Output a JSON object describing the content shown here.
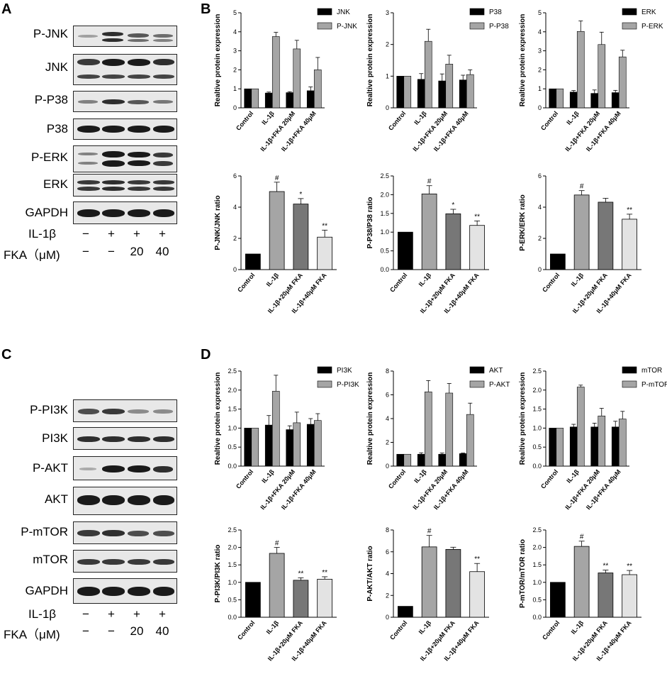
{
  "panels": [
    "A",
    "B",
    "C",
    "D"
  ],
  "blotA": {
    "labels": [
      "P-JNK",
      "JNK",
      "P-P38",
      "P38",
      "P-ERK",
      "ERK",
      "GAPDH"
    ],
    "treat_rows": [
      {
        "label": "IL-1β",
        "values": [
          "−",
          "+",
          "+",
          "+"
        ]
      },
      {
        "label": "FKA（μM)",
        "values": [
          "−",
          "−",
          "20",
          "40"
        ]
      }
    ]
  },
  "blotC": {
    "labels": [
      "P-PI3K",
      "PI3K",
      "P-AKT",
      "AKT",
      "P-mTOR",
      "mTOR",
      "GAPDH"
    ],
    "treat_rows": [
      {
        "label": "IL-1β",
        "values": [
          "−",
          "+",
          "+",
          "+"
        ]
      },
      {
        "label": "FKA（μM)",
        "values": [
          "−",
          "−",
          "20",
          "40"
        ]
      }
    ]
  },
  "colors": {
    "black": "#000000",
    "gray": "#a5a5a5",
    "darkgray": "#777777",
    "lightgray": "#e3e3e3"
  },
  "chart_data": [
    {
      "id": "B1",
      "type": "bar",
      "categories": [
        "Control",
        "IL-1β",
        "IL-1β+FKA 20μM",
        "IL-1β+FKA 40μM"
      ],
      "series": [
        {
          "name": "JNK",
          "color": "#000000",
          "values": [
            1.0,
            0.78,
            0.8,
            0.9
          ],
          "errors": [
            0,
            0.05,
            0.05,
            0.2
          ]
        },
        {
          "name": "P-JNK",
          "color": "#a5a5a5",
          "values": [
            1.0,
            3.75,
            3.1,
            2.0
          ],
          "errors": [
            0,
            0.22,
            0.45,
            0.65
          ]
        }
      ],
      "ylabel": "Realtive protein expression",
      "ylim": [
        0,
        5
      ],
      "yticks": [
        0,
        1,
        2,
        3,
        4,
        5
      ],
      "legend": "top-right"
    },
    {
      "id": "B2",
      "type": "bar",
      "categories": [
        "Control",
        "IL-1β",
        "IL-1β+FKA 20μM",
        "IL-1β+FKA 40μM"
      ],
      "series": [
        {
          "name": "P38",
          "color": "#000000",
          "values": [
            1.0,
            0.9,
            0.85,
            0.88
          ],
          "errors": [
            0,
            0.18,
            0.22,
            0.15
          ]
        },
        {
          "name": "P-P38",
          "color": "#a5a5a5",
          "values": [
            1.0,
            2.1,
            1.38,
            1.05
          ],
          "errors": [
            0,
            0.38,
            0.28,
            0.15
          ]
        }
      ],
      "ylabel": "Realtive protein expression",
      "ylim": [
        0,
        3
      ],
      "yticks": [
        0,
        1,
        2,
        3
      ],
      "legend": "top-right"
    },
    {
      "id": "B3",
      "type": "bar",
      "categories": [
        "Control",
        "IL-1β",
        "IL-1β+FKA 20μM",
        "IL-1β+FKA 40μM"
      ],
      "series": [
        {
          "name": "ERK",
          "color": "#000000",
          "values": [
            1.0,
            0.83,
            0.76,
            0.8
          ],
          "errors": [
            0,
            0.08,
            0.18,
            0.12
          ]
        },
        {
          "name": "P-ERK",
          "color": "#a5a5a5",
          "values": [
            1.0,
            4.02,
            3.33,
            2.68
          ],
          "errors": [
            0,
            0.55,
            0.65,
            0.35
          ]
        }
      ],
      "ylabel": "Realtive protein expression",
      "ylim": [
        0,
        5
      ],
      "yticks": [
        0,
        1,
        2,
        3,
        4,
        5
      ],
      "legend": "top-right"
    },
    {
      "id": "B4",
      "type": "bar",
      "categories": [
        "Control",
        "IL-1β",
        "IL-1β+20μM FKA",
        "IL-1β+40μM FKA"
      ],
      "series": [
        {
          "values": [
            1.0,
            5.0,
            4.2,
            2.08
          ],
          "errors": [
            0,
            0.6,
            0.35,
            0.45
          ],
          "colors": [
            "#000000",
            "#a5a5a5",
            "#777777",
            "#e3e3e3"
          ]
        }
      ],
      "annotations": [
        "",
        "#",
        "*",
        "**"
      ],
      "ylabel": "P-JNK/JNK ratio",
      "ylim": [
        0,
        6
      ],
      "yticks": [
        0,
        2,
        4,
        6
      ]
    },
    {
      "id": "B5",
      "type": "bar",
      "categories": [
        "Control",
        "IL-1β",
        "IL-1β+20μM FKA",
        "IL-1β+40μM FKA"
      ],
      "series": [
        {
          "values": [
            1.0,
            2.02,
            1.49,
            1.18
          ],
          "errors": [
            0,
            0.22,
            0.12,
            0.12
          ],
          "colors": [
            "#000000",
            "#a5a5a5",
            "#777777",
            "#e3e3e3"
          ]
        }
      ],
      "annotations": [
        "",
        "#",
        "*",
        "**"
      ],
      "ylabel": "P-P38/P38 ratio",
      "ylim": [
        0,
        2.5
      ],
      "yticks": [
        0,
        0.5,
        1.0,
        1.5,
        2.0,
        2.5
      ]
    },
    {
      "id": "B6",
      "type": "bar",
      "categories": [
        "Control",
        "IL-1β",
        "IL-1β+20μM FKA",
        "IL-1β+40μM FKA"
      ],
      "series": [
        {
          "values": [
            1.0,
            4.78,
            4.32,
            3.23
          ],
          "errors": [
            0,
            0.28,
            0.25,
            0.32
          ],
          "colors": [
            "#000000",
            "#a5a5a5",
            "#777777",
            "#e3e3e3"
          ]
        }
      ],
      "annotations": [
        "",
        "#",
        "",
        "**"
      ],
      "ylabel": "P-ERK/ERK ratio",
      "ylim": [
        0,
        6
      ],
      "yticks": [
        0,
        2,
        4,
        6
      ]
    },
    {
      "id": "D1",
      "type": "bar",
      "categories": [
        "Control",
        "IL-1β",
        "IL-1β+FKA 20μM",
        "IL-1β+FKA 40μM"
      ],
      "series": [
        {
          "name": "PI3K",
          "color": "#000000",
          "values": [
            1.0,
            1.08,
            0.96,
            1.1
          ],
          "errors": [
            0,
            0.25,
            0.1,
            0.15
          ]
        },
        {
          "name": "P-PI3K",
          "color": "#a5a5a5",
          "values": [
            1.0,
            1.97,
            1.14,
            1.2
          ],
          "errors": [
            0,
            0.42,
            0.28,
            0.18
          ]
        }
      ],
      "ylabel": "Realtive protein expression",
      "ylim": [
        0,
        2.5
      ],
      "yticks": [
        0,
        0.5,
        1.0,
        1.5,
        2.0,
        2.5
      ],
      "legend": "top-right"
    },
    {
      "id": "D2",
      "type": "bar",
      "categories": [
        "Control",
        "IL-1β",
        "IL-1β+FKA 20μM",
        "IL-1β+FKA 40μM"
      ],
      "series": [
        {
          "name": "AKT",
          "color": "#000000",
          "values": [
            1.0,
            1.0,
            1.0,
            1.05
          ],
          "errors": [
            0,
            0.12,
            0.1,
            0.05
          ]
        },
        {
          "name": "P-AKT",
          "color": "#a5a5a5",
          "values": [
            1.0,
            6.25,
            6.15,
            4.35
          ],
          "errors": [
            0,
            0.95,
            0.8,
            0.95
          ]
        }
      ],
      "ylabel": "Realtive protein expression",
      "ylim": [
        0,
        8
      ],
      "yticks": [
        0,
        2,
        4,
        6,
        8
      ],
      "legend": "top-right"
    },
    {
      "id": "D3",
      "type": "bar",
      "categories": [
        "Control",
        "IL-1β",
        "IL-1β+FKA 20μM",
        "IL-1β+FKA 40μM"
      ],
      "series": [
        {
          "name": "mTOR",
          "color": "#000000",
          "values": [
            1.0,
            1.03,
            1.03,
            1.03
          ],
          "errors": [
            0,
            0.07,
            0.1,
            0.15
          ]
        },
        {
          "name": "P-mTOR",
          "color": "#a5a5a5",
          "values": [
            1.0,
            2.08,
            1.32,
            1.24
          ],
          "errors": [
            0,
            0.05,
            0.2,
            0.2
          ]
        }
      ],
      "ylabel": "Realtive protein expression",
      "ylim": [
        0,
        2.5
      ],
      "yticks": [
        0,
        0.5,
        1.0,
        1.5,
        2.0,
        2.5
      ],
      "legend": "top-right"
    },
    {
      "id": "D4",
      "type": "bar",
      "categories": [
        "Control",
        "IL-1β",
        "IL-1β+20μM FKA",
        "IL-1β+40μM FKA"
      ],
      "series": [
        {
          "values": [
            1.0,
            1.83,
            1.06,
            1.09
          ],
          "errors": [
            0,
            0.17,
            0.07,
            0.07
          ],
          "colors": [
            "#000000",
            "#a5a5a5",
            "#777777",
            "#e3e3e3"
          ]
        }
      ],
      "annotations": [
        "",
        "#",
        "**",
        "**"
      ],
      "ylabel": "P-PI3K/PI3K ratio",
      "ylim": [
        0,
        2.5
      ],
      "yticks": [
        0,
        0.5,
        1.0,
        1.5,
        2.0,
        2.5
      ]
    },
    {
      "id": "D5",
      "type": "bar",
      "categories": [
        "Control",
        "IL-1β",
        "IL-1β+20μM FKA",
        "IL-1β+40μM FKA"
      ],
      "series": [
        {
          "values": [
            1.0,
            6.45,
            6.22,
            4.18
          ],
          "errors": [
            0,
            1.05,
            0.2,
            0.75
          ],
          "colors": [
            "#000000",
            "#a5a5a5",
            "#777777",
            "#e3e3e3"
          ]
        }
      ],
      "annotations": [
        "",
        "#",
        "",
        "**"
      ],
      "ylabel": "P-AKT/AKT ratio",
      "ylim": [
        0,
        8
      ],
      "yticks": [
        0,
        2,
        4,
        6,
        8
      ]
    },
    {
      "id": "D6",
      "type": "bar",
      "categories": [
        "Control",
        "IL-1β",
        "IL-1β+20μM FKA",
        "IL-1β+40μM FKA"
      ],
      "series": [
        {
          "values": [
            1.0,
            2.03,
            1.27,
            1.22
          ],
          "errors": [
            0,
            0.15,
            0.08,
            0.12
          ],
          "colors": [
            "#000000",
            "#a5a5a5",
            "#777777",
            "#e3e3e3"
          ]
        }
      ],
      "annotations": [
        "",
        "#",
        "**",
        "**"
      ],
      "ylabel": "P-mTOR/mTOR ratio",
      "ylim": [
        0,
        2.5
      ],
      "yticks": [
        0,
        0.5,
        1.0,
        1.5,
        2.0,
        2.5
      ]
    }
  ]
}
